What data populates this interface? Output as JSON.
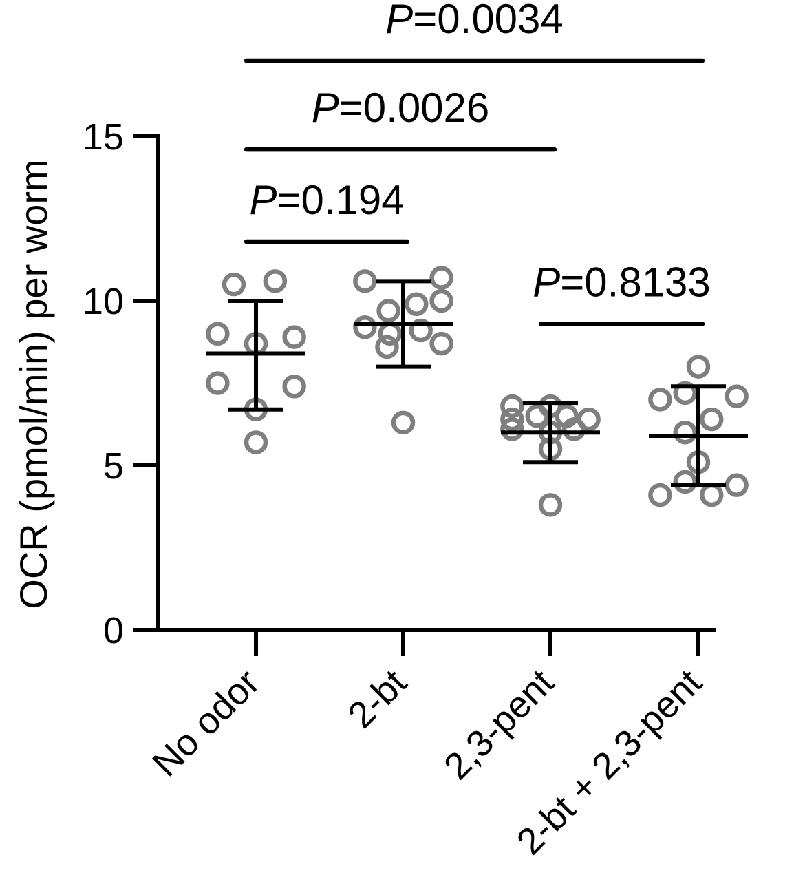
{
  "chart_data": {
    "type": "scatter",
    "ylabel": "OCR (pmol/min) per worm",
    "ylim": [
      0,
      15
    ],
    "yticks": [
      0,
      5,
      10,
      15
    ],
    "categories": [
      "No odor",
      "2-bt",
      "2,3-pent",
      "2-bt + 2,3-pent"
    ],
    "groups": [
      {
        "category": "No odor",
        "points": [
          {
            "offset": -0.15,
            "y": 10.5
          },
          {
            "offset": 0.13,
            "y": 10.6
          },
          {
            "offset": -0.26,
            "y": 9.0
          },
          {
            "offset": 0.0,
            "y": 8.7
          },
          {
            "offset": 0.26,
            "y": 8.9
          },
          {
            "offset": -0.26,
            "y": 7.5
          },
          {
            "offset": 0.26,
            "y": 7.4
          },
          {
            "offset": 0.0,
            "y": 6.7
          },
          {
            "offset": 0.0,
            "y": 5.7
          }
        ],
        "mean": 8.4,
        "sd_low": 6.7,
        "sd_high": 10.0
      },
      {
        "category": "2-bt",
        "points": [
          {
            "offset": -0.26,
            "y": 10.6
          },
          {
            "offset": 0.26,
            "y": 10.7
          },
          {
            "offset": -0.1,
            "y": 9.7
          },
          {
            "offset": 0.09,
            "y": 9.9
          },
          {
            "offset": 0.26,
            "y": 10.0
          },
          {
            "offset": -0.26,
            "y": 9.2
          },
          {
            "offset": -0.09,
            "y": 9.0
          },
          {
            "offset": 0.12,
            "y": 9.1
          },
          {
            "offset": -0.11,
            "y": 8.6
          },
          {
            "offset": 0.26,
            "y": 8.7
          },
          {
            "offset": 0.0,
            "y": 6.3
          }
        ],
        "mean": 9.3,
        "sd_low": 8.0,
        "sd_high": 10.6
      },
      {
        "category": "2,3-pent",
        "points": [
          {
            "offset": -0.26,
            "y": 6.8
          },
          {
            "offset": 0.0,
            "y": 6.8
          },
          {
            "offset": -0.26,
            "y": 6.4
          },
          {
            "offset": -0.09,
            "y": 6.5
          },
          {
            "offset": 0.11,
            "y": 6.5
          },
          {
            "offset": 0.26,
            "y": 6.4
          },
          {
            "offset": -0.26,
            "y": 6.1
          },
          {
            "offset": 0.0,
            "y": 6.0
          },
          {
            "offset": 0.16,
            "y": 6.1
          },
          {
            "offset": 0.0,
            "y": 5.5
          },
          {
            "offset": 0.0,
            "y": 3.8
          }
        ],
        "mean": 6.0,
        "sd_low": 5.1,
        "sd_high": 6.9
      },
      {
        "category": "2-bt + 2,3-pent",
        "points": [
          {
            "offset": 0.0,
            "y": 8.0
          },
          {
            "offset": -0.26,
            "y": 7.0
          },
          {
            "offset": -0.09,
            "y": 7.2
          },
          {
            "offset": 0.26,
            "y": 7.1
          },
          {
            "offset": 0.09,
            "y": 6.4
          },
          {
            "offset": -0.09,
            "y": 6.0
          },
          {
            "offset": 0.0,
            "y": 5.1
          },
          {
            "offset": -0.26,
            "y": 4.1
          },
          {
            "offset": -0.09,
            "y": 4.5
          },
          {
            "offset": 0.09,
            "y": 4.1
          },
          {
            "offset": 0.26,
            "y": 4.4
          }
        ],
        "mean": 5.9,
        "sd_low": 4.4,
        "sd_high": 7.4
      }
    ],
    "significance": [
      {
        "from": 0,
        "to": 1,
        "line_y": 11.8,
        "label_prefix": "P",
        "label_value": "=0.194"
      },
      {
        "from": 0,
        "to": 2,
        "line_y": 14.6,
        "label_prefix": "P",
        "label_value": "=0.0026"
      },
      {
        "from": 0,
        "to": 3,
        "line_y": 17.3,
        "label_prefix": "P",
        "label_value": "=0.0034"
      },
      {
        "from": 2,
        "to": 3,
        "line_y": 9.3,
        "label_prefix": "P",
        "label_value": "=0.8133"
      }
    ],
    "colors": {
      "points": "#7f7f7f",
      "axes": "#000000",
      "bars": "#000000"
    }
  }
}
